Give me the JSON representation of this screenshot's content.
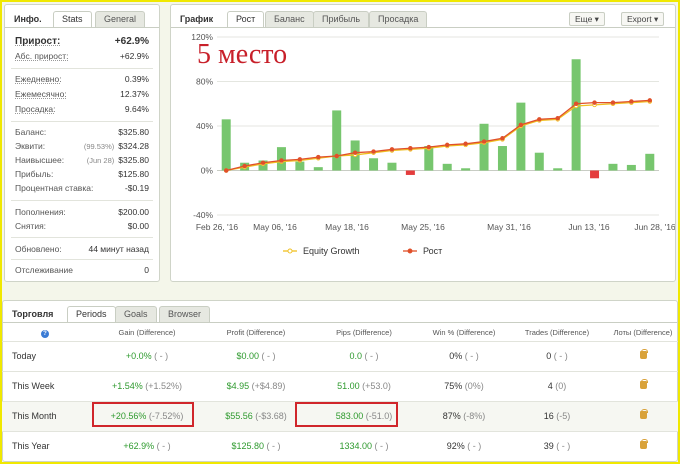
{
  "info_panel": {
    "title": "Инфо.",
    "tabs": [
      "Stats",
      "General"
    ],
    "growth_label": "Прирост:",
    "growth_value": "+62.9%",
    "abs_label": "Абс. прирост:",
    "abs_value": "+62.9%",
    "daily_label": "Ежедневно:",
    "daily_value": "0.39%",
    "monthly_label": "Ежемесячно:",
    "monthly_value": "12.37%",
    "drawdown_label": "Просадка:",
    "drawdown_value": "9.64%",
    "balance_label": "Баланс:",
    "balance_value": "$325.80",
    "equity_label": "Эквити:",
    "equity_pre": "(99.53%)",
    "equity_value": "$324.28",
    "highest_label": "Наивысшее:",
    "highest_pre": "(Jun 28)",
    "highest_value": "$325.80",
    "profit_label": "Прибыль:",
    "profit_value": "$125.80",
    "interest_label": "Процентная ставка:",
    "interest_value": "-$0.19",
    "deposits_label": "Пополнения:",
    "deposits_value": "$200.00",
    "withdrawals_label": "Снятия:",
    "withdrawals_value": "$0.00",
    "updated_label": "Обновлено:",
    "updated_value": "44 минут назад",
    "tracking_label": "Отслеживание",
    "tracking_value": "0"
  },
  "chart_panel": {
    "title": "График",
    "tabs": [
      "Рост",
      "Баланс",
      "Прибыль",
      "Просадка"
    ],
    "btn_more": "Еще",
    "btn_export": "Export",
    "overlay": "5 место"
  },
  "chart_data": {
    "type": "bar",
    "ylim": [
      -40,
      120
    ],
    "yticks": [
      "120%",
      "80%",
      "40%",
      "0%",
      "-40%"
    ],
    "yticks_values": [
      120,
      80,
      40,
      0,
      -40
    ],
    "xticks": [
      "Feb 26, '16",
      "May 06, '16",
      "May 18, '16",
      "May 25, '16",
      "May 31, '16",
      "Jun 13, '16",
      "Jun 28, '16"
    ],
    "bars": [
      46,
      7,
      9,
      21,
      8,
      3,
      54,
      27,
      11,
      7,
      -4,
      22,
      6,
      2,
      42,
      22,
      61,
      16,
      2,
      100,
      -7,
      6,
      5,
      15
    ],
    "series": [
      {
        "name": "Equity Growth",
        "color": "#f0c020",
        "values": [
          0,
          3,
          6,
          8,
          9,
          11,
          13,
          14,
          16,
          18,
          19,
          20,
          22,
          23,
          25,
          28,
          40,
          45,
          46,
          58,
          59,
          60,
          61,
          62
        ]
      },
      {
        "name": "Рост",
        "color": "#e0502a",
        "values": [
          0,
          4,
          7,
          9,
          10,
          12,
          13,
          16,
          17,
          19,
          20,
          21,
          23,
          24,
          26,
          29,
          41,
          46,
          47,
          60,
          61,
          61,
          62,
          63
        ]
      }
    ]
  },
  "trade_panel": {
    "title": "Торговля",
    "tabs": [
      "Periods",
      "Goals",
      "Browser"
    ],
    "help_icon": "question-icon",
    "headers": [
      "Gain (Difference)",
      "Profit (Difference)",
      "Pips (Difference)",
      "Win % (Difference)",
      "Trades (Difference)",
      "Лоты (Difference)"
    ],
    "rows": [
      {
        "period": "Today",
        "gain": "+0.0%",
        "gain_diff": "( - )",
        "profit": "$0.00",
        "profit_diff": "( - )",
        "pips": "0.0",
        "pips_diff": "( - )",
        "win": "0%",
        "win_diff": "( - )",
        "trades": "0",
        "trades_diff": "( - )"
      },
      {
        "period": "This Week",
        "gain": "+1.54%",
        "gain_diff": "(+1.52%)",
        "profit": "$4.95",
        "profit_diff": "(+$4.89)",
        "pips": "51.00",
        "pips_diff": "(+53.0)",
        "win": "75%",
        "win_diff": "(0%)",
        "trades": "4",
        "trades_diff": "(0)"
      },
      {
        "period": "This Month",
        "gain": "+20.56%",
        "gain_diff": "(-7.52%)",
        "profit": "$55.56",
        "profit_diff": "(-$3.68)",
        "pips": "583.00",
        "pips_diff": "(-51.0)",
        "win": "87%",
        "win_diff": "(-8%)",
        "trades": "16",
        "trades_diff": "(-5)"
      },
      {
        "period": "This Year",
        "gain": "+62.9%",
        "gain_diff": "( - )",
        "profit": "$125.80",
        "profit_diff": "( - )",
        "pips": "1334.00",
        "pips_diff": "( - )",
        "win": "92%",
        "win_diff": "( - )",
        "trades": "39",
        "trades_diff": "( - )"
      }
    ]
  }
}
